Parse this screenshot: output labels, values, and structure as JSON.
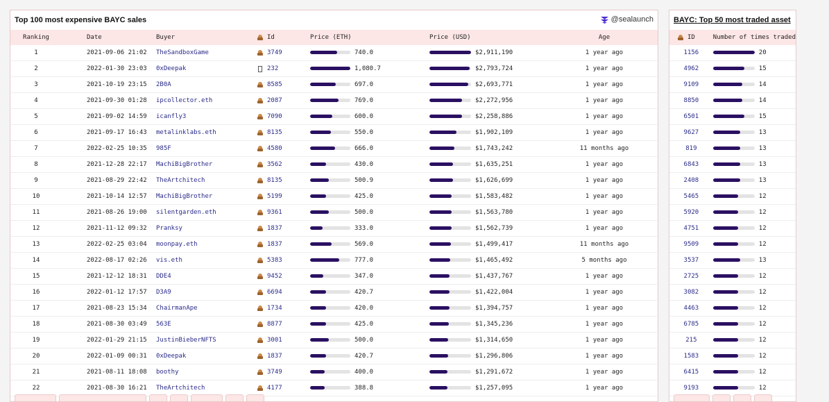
{
  "main": {
    "title": "Top 100 most expensive BAYC sales",
    "brand": "@sealaunch",
    "columns": [
      "Ranking",
      "Date",
      "Buyer",
      "Id",
      "Price (ETH)",
      "Price (USD)",
      "Age"
    ],
    "rows": [
      {
        "rank": "1",
        "date": "2021-09-06 21:02",
        "buyer": "TheSandboxGame",
        "id": "3749",
        "eth": "740.0",
        "usd": "$2,911,190",
        "age": "1 year ago",
        "eth_pct": 0.68,
        "usd_pct": 1.0
      },
      {
        "rank": "2",
        "date": "2022-01-30 23:03",
        "buyer": "0xDeepak",
        "id": "232",
        "eth": "1,080.7",
        "usd": "$2,793,724",
        "age": "1 year ago",
        "eth_pct": 1.0,
        "usd_pct": 0.96,
        "missing_icon": true
      },
      {
        "rank": "3",
        "date": "2021-10-19 23:15",
        "buyer": "2B0A",
        "id": "8585",
        "eth": "697.0",
        "usd": "$2,693,771",
        "age": "1 year ago",
        "eth_pct": 0.64,
        "usd_pct": 0.93
      },
      {
        "rank": "4",
        "date": "2021-09-30 01:28",
        "buyer": "ipcollector.eth",
        "id": "2087",
        "eth": "769.0",
        "usd": "$2,272,956",
        "age": "1 year ago",
        "eth_pct": 0.71,
        "usd_pct": 0.78
      },
      {
        "rank": "5",
        "date": "2021-09-02 14:59",
        "buyer": "icanfly3",
        "id": "7090",
        "eth": "600.0",
        "usd": "$2,258,886",
        "age": "1 year ago",
        "eth_pct": 0.56,
        "usd_pct": 0.78
      },
      {
        "rank": "6",
        "date": "2021-09-17 16:43",
        "buyer": "metalinklabs.eth",
        "id": "8135",
        "eth": "550.0",
        "usd": "$1,902,109",
        "age": "1 year ago",
        "eth_pct": 0.51,
        "usd_pct": 0.65
      },
      {
        "rank": "7",
        "date": "2022-02-25 10:35",
        "buyer": "985F",
        "id": "4580",
        "eth": "666.0",
        "usd": "$1,743,242",
        "age": "11 months ago",
        "eth_pct": 0.62,
        "usd_pct": 0.6
      },
      {
        "rank": "8",
        "date": "2021-12-28 22:17",
        "buyer": "MachiBigBrother",
        "id": "3562",
        "eth": "430.0",
        "usd": "$1,635,251",
        "age": "1 year ago",
        "eth_pct": 0.4,
        "usd_pct": 0.56
      },
      {
        "rank": "9",
        "date": "2021-08-29 22:42",
        "buyer": "TheArtchitech",
        "id": "8135",
        "eth": "500.9",
        "usd": "$1,626,699",
        "age": "1 year ago",
        "eth_pct": 0.46,
        "usd_pct": 0.56
      },
      {
        "rank": "10",
        "date": "2021-10-14 12:57",
        "buyer": "MachiBigBrother",
        "id": "5199",
        "eth": "425.0",
        "usd": "$1,583,482",
        "age": "1 year ago",
        "eth_pct": 0.39,
        "usd_pct": 0.54
      },
      {
        "rank": "11",
        "date": "2021-08-26 19:00",
        "buyer": "silentgarden.eth",
        "id": "9361",
        "eth": "500.0",
        "usd": "$1,563,780",
        "age": "1 year ago",
        "eth_pct": 0.46,
        "usd_pct": 0.54
      },
      {
        "rank": "12",
        "date": "2021-11-12 09:32",
        "buyer": "Pranksy",
        "id": "1837",
        "eth": "333.0",
        "usd": "$1,562,739",
        "age": "1 year ago",
        "eth_pct": 0.31,
        "usd_pct": 0.54
      },
      {
        "rank": "13",
        "date": "2022-02-25 03:04",
        "buyer": "moonpay.eth",
        "id": "1837",
        "eth": "569.0",
        "usd": "$1,499,417",
        "age": "11 months ago",
        "eth_pct": 0.53,
        "usd_pct": 0.52
      },
      {
        "rank": "14",
        "date": "2022-08-17 02:26",
        "buyer": "vis.eth",
        "id": "5383",
        "eth": "777.0",
        "usd": "$1,465,492",
        "age": "5 months ago",
        "eth_pct": 0.72,
        "usd_pct": 0.5
      },
      {
        "rank": "15",
        "date": "2021-12-12 18:31",
        "buyer": "DDE4",
        "id": "9452",
        "eth": "347.0",
        "usd": "$1,437,767",
        "age": "1 year ago",
        "eth_pct": 0.32,
        "usd_pct": 0.49
      },
      {
        "rank": "16",
        "date": "2022-01-12 17:57",
        "buyer": "D3A9",
        "id": "6694",
        "eth": "420.7",
        "usd": "$1,422,004",
        "age": "1 year ago",
        "eth_pct": 0.39,
        "usd_pct": 0.49
      },
      {
        "rank": "17",
        "date": "2021-08-23 15:34",
        "buyer": "ChairmanApe",
        "id": "1734",
        "eth": "420.0",
        "usd": "$1,394,757",
        "age": "1 year ago",
        "eth_pct": 0.39,
        "usd_pct": 0.48
      },
      {
        "rank": "18",
        "date": "2021-08-30 03:49",
        "buyer": "563E",
        "id": "8877",
        "eth": "425.0",
        "usd": "$1,345,236",
        "age": "1 year ago",
        "eth_pct": 0.39,
        "usd_pct": 0.46
      },
      {
        "rank": "19",
        "date": "2022-01-29 21:15",
        "buyer": "JustinBieberNFTS",
        "id": "3001",
        "eth": "500.0",
        "usd": "$1,314,650",
        "age": "1 year ago",
        "eth_pct": 0.46,
        "usd_pct": 0.45
      },
      {
        "rank": "20",
        "date": "2022-01-09 00:31",
        "buyer": "0xDeepak",
        "id": "1837",
        "eth": "420.7",
        "usd": "$1,296,806",
        "age": "1 year ago",
        "eth_pct": 0.39,
        "usd_pct": 0.45
      },
      {
        "rank": "21",
        "date": "2021-08-11 18:08",
        "buyer": "boothy",
        "id": "3749",
        "eth": "400.0",
        "usd": "$1,291,672",
        "age": "1 year ago",
        "eth_pct": 0.37,
        "usd_pct": 0.44
      },
      {
        "rank": "22",
        "date": "2021-08-30 16:21",
        "buyer": "TheArtchitech",
        "id": "4177",
        "eth": "388.8",
        "usd": "$1,257,095",
        "age": "1 year ago",
        "eth_pct": 0.36,
        "usd_pct": 0.43
      }
    ]
  },
  "side": {
    "title": "BAYC: Top 50 most traded asset",
    "columns": [
      "ID",
      "Number of times traded"
    ],
    "rows": [
      {
        "id": "1156",
        "count": "20",
        "pct": 1.0
      },
      {
        "id": "4962",
        "count": "15",
        "pct": 0.75
      },
      {
        "id": "9109",
        "count": "14",
        "pct": 0.7
      },
      {
        "id": "8850",
        "count": "14",
        "pct": 0.7
      },
      {
        "id": "6501",
        "count": "15",
        "pct": 0.75
      },
      {
        "id": "9627",
        "count": "13",
        "pct": 0.65
      },
      {
        "id": "819",
        "count": "13",
        "pct": 0.65
      },
      {
        "id": "6843",
        "count": "13",
        "pct": 0.65
      },
      {
        "id": "2408",
        "count": "13",
        "pct": 0.65
      },
      {
        "id": "5465",
        "count": "12",
        "pct": 0.6
      },
      {
        "id": "5920",
        "count": "12",
        "pct": 0.6
      },
      {
        "id": "4751",
        "count": "12",
        "pct": 0.6
      },
      {
        "id": "9509",
        "count": "12",
        "pct": 0.6
      },
      {
        "id": "3537",
        "count": "13",
        "pct": 0.65
      },
      {
        "id": "2725",
        "count": "12",
        "pct": 0.6
      },
      {
        "id": "3082",
        "count": "12",
        "pct": 0.6
      },
      {
        "id": "4463",
        "count": "12",
        "pct": 0.6
      },
      {
        "id": "6785",
        "count": "12",
        "pct": 0.6
      },
      {
        "id": "215",
        "count": "12",
        "pct": 0.6
      },
      {
        "id": "1583",
        "count": "12",
        "pct": 0.6
      },
      {
        "id": "6415",
        "count": "12",
        "pct": 0.6
      },
      {
        "id": "9193",
        "count": "12",
        "pct": 0.6
      }
    ]
  },
  "colors": {
    "bar": "#2a1062",
    "track": "#e3e3e3",
    "header_bg": "#fde6e6",
    "link": "#2a2a8a"
  },
  "icons": {
    "id_column": "ape-icon",
    "brand": "sealaunch-logo-icon"
  }
}
